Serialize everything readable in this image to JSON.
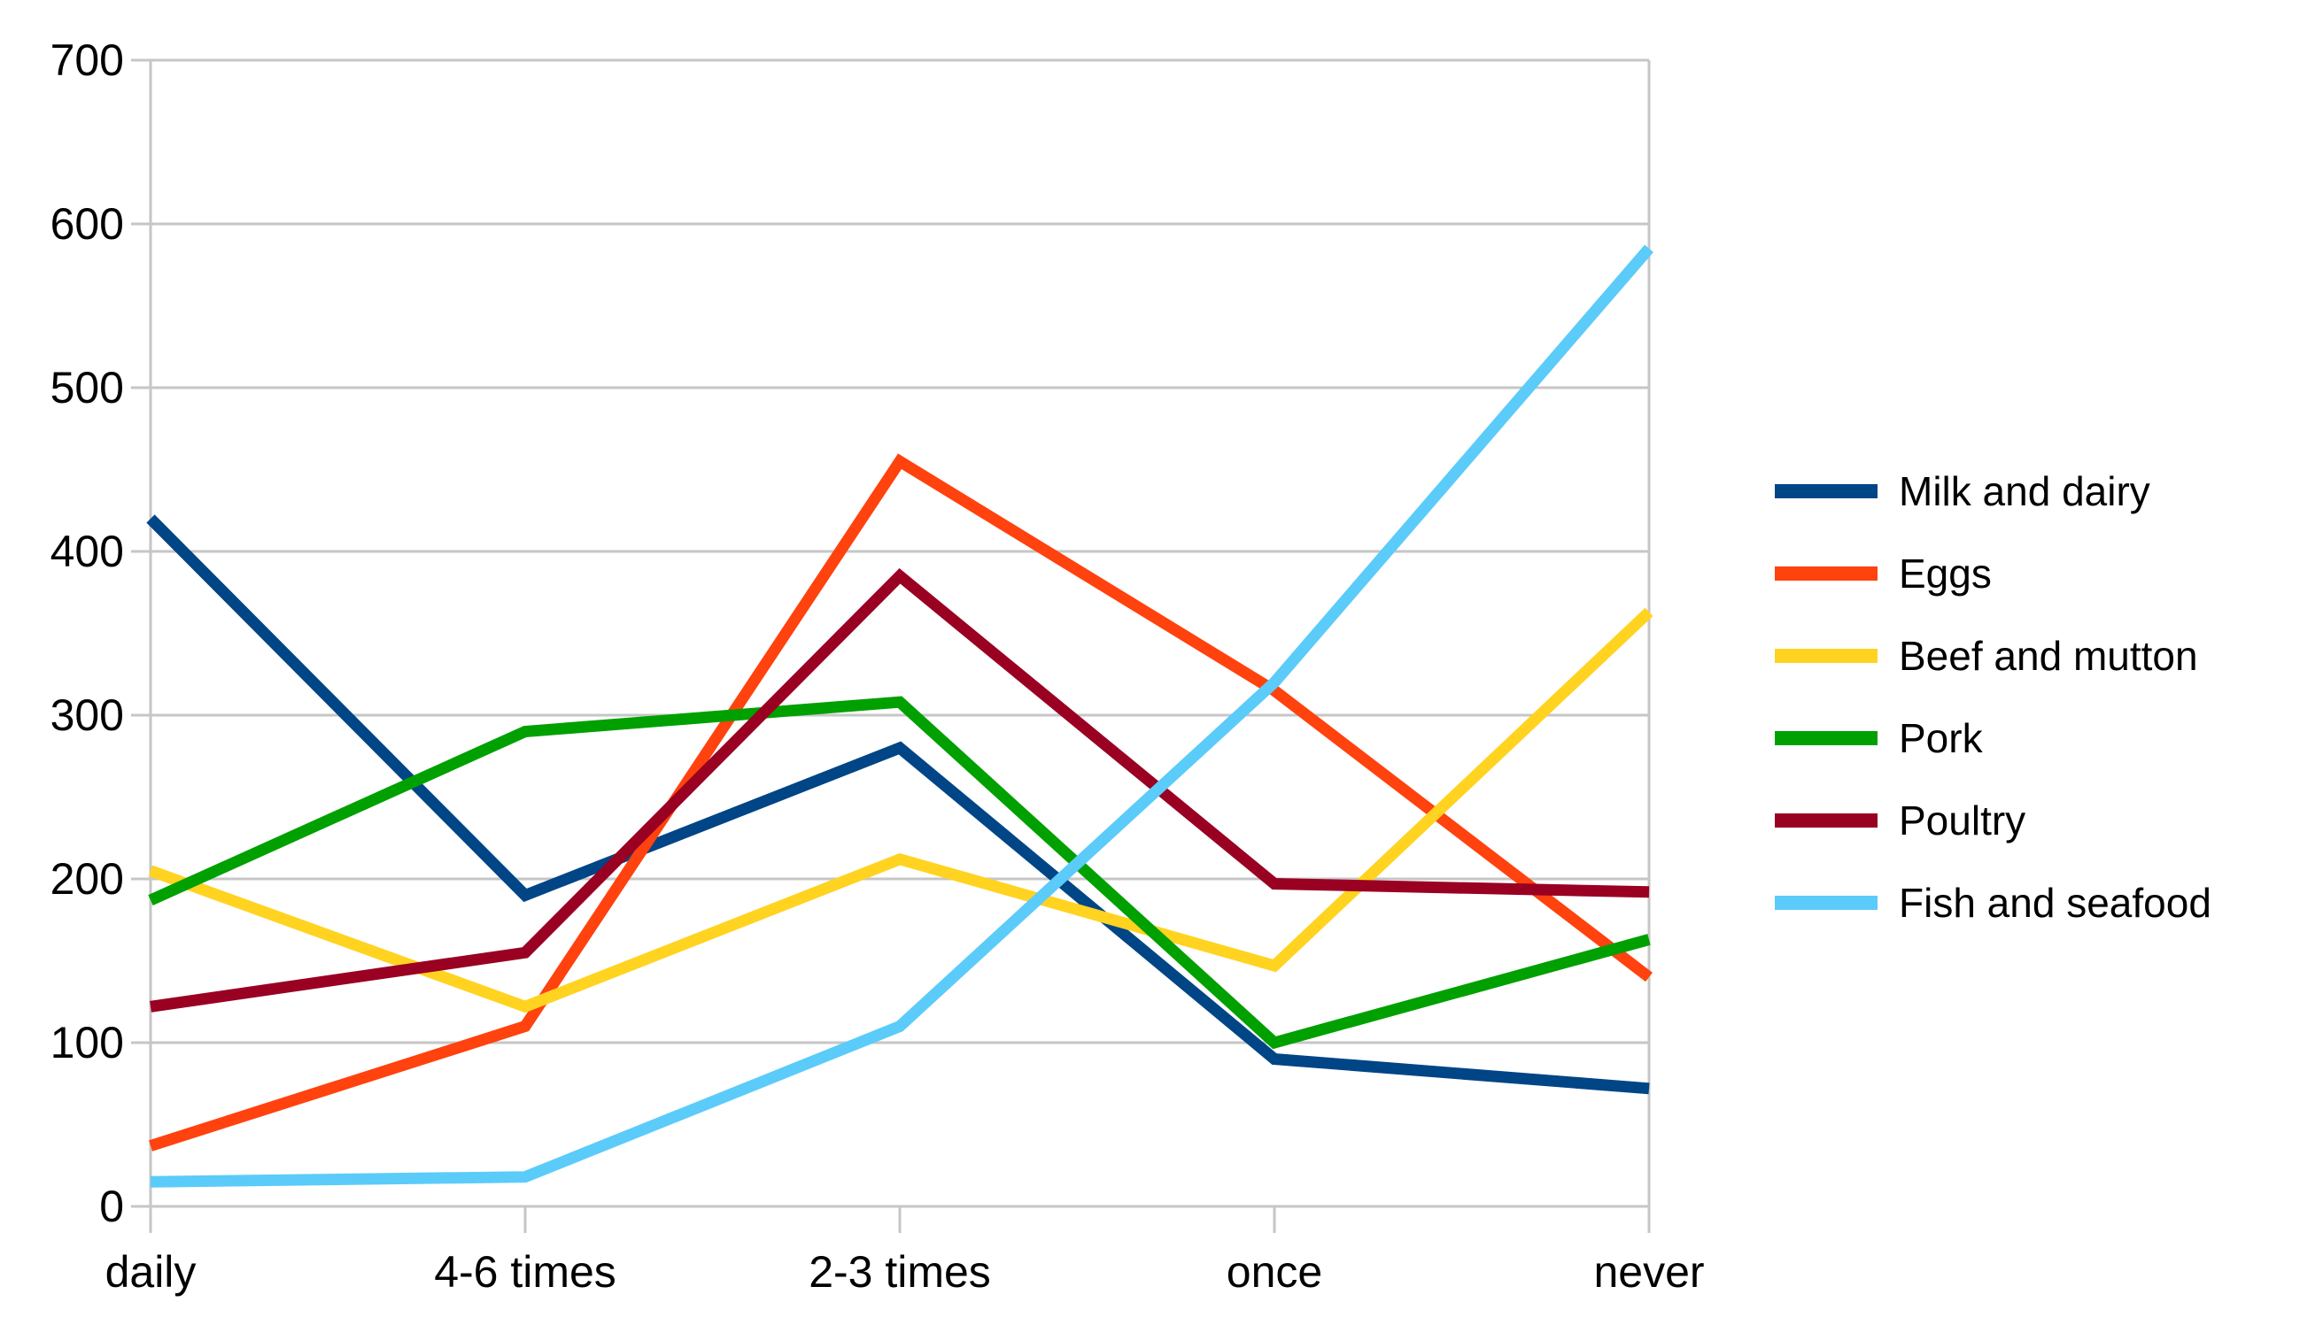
{
  "chart_data": {
    "type": "line",
    "title": "",
    "xlabel": "",
    "ylabel": "",
    "categories": [
      "daily",
      "4-6 times",
      "2-3 times",
      "once",
      "never"
    ],
    "series": [
      {
        "name": "Milk and dairy",
        "color": "#004586",
        "values": [
          420,
          190,
          280,
          90,
          72
        ]
      },
      {
        "name": "Eggs",
        "color": "#FF420E",
        "values": [
          37,
          110,
          455,
          315,
          140
        ]
      },
      {
        "name": "Beef and mutton",
        "color": "#FFD320",
        "values": [
          205,
          122,
          212,
          147,
          363
        ]
      },
      {
        "name": "Pork",
        "color": "#00A000",
        "values": [
          187,
          290,
          308,
          100,
          163
        ]
      },
      {
        "name": "Poultry",
        "color": "#990022",
        "values": [
          122,
          155,
          385,
          197,
          192
        ]
      },
      {
        "name": "Fish and seafood",
        "color": "#5BCBFA",
        "values": [
          15,
          18,
          110,
          320,
          585
        ]
      }
    ],
    "ylim": [
      0,
      700
    ],
    "y_ticks": [
      0,
      100,
      200,
      300,
      400,
      500,
      600,
      700
    ],
    "grid": true,
    "legend_position": "right"
  },
  "style": {
    "grid_color": "#C6C6C6",
    "axis_color": "#C6C6C6",
    "background": "#FFFFFF",
    "text_color": "#000000"
  }
}
